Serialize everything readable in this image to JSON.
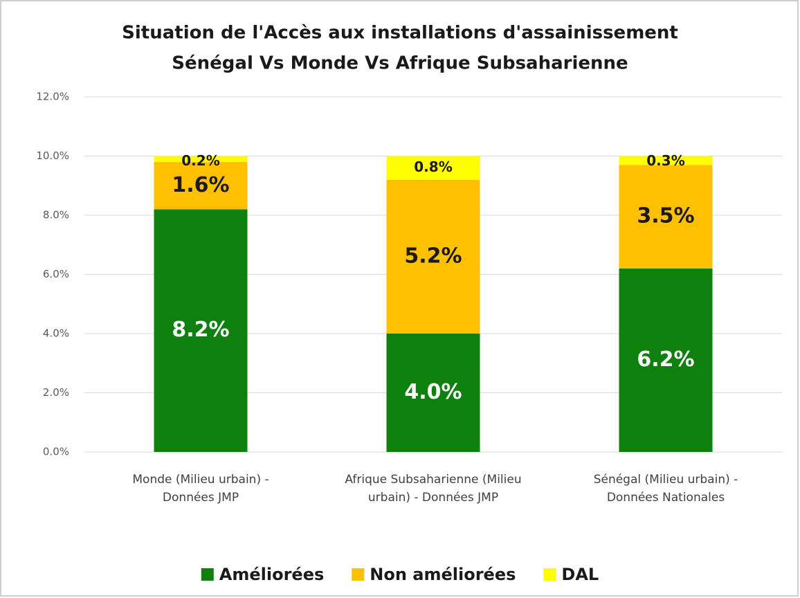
{
  "chart_data": {
    "type": "stacked_bar",
    "title": [
      "Situation de l'Accès aux installations d'assainissement",
      "Sénégal Vs Monde Vs Afrique Subsaharienne"
    ],
    "categories": [
      "Monde (Milieu urbain) - Données JMP",
      "Afrique Subsaharienne (Milieu urbain) - Données JMP",
      "Sénégal (Milieu urbain) - Données Nationales"
    ],
    "series": [
      {
        "name": "Améliorées",
        "color": "#0e800e",
        "values": [
          8.2,
          4.0,
          6.2
        ],
        "value_labels": [
          "8.2%",
          "4.0%",
          "6.2%"
        ]
      },
      {
        "name": "Non améliorées",
        "color": "#ffc000",
        "values": [
          1.6,
          5.2,
          3.5
        ],
        "value_labels": [
          "1.6%",
          "5.2%",
          "3.5%"
        ]
      },
      {
        "name": "DAL",
        "color": "#ffff00",
        "values": [
          0.2,
          0.8,
          0.3
        ],
        "value_labels": [
          "0.2%",
          "0.8%",
          "0.3%"
        ]
      }
    ],
    "ylim": [
      0,
      12
    ],
    "yticks": [
      {
        "value": 0,
        "label": "0.0%"
      },
      {
        "value": 2,
        "label": "2.0%"
      },
      {
        "value": 4,
        "label": "4.0%"
      },
      {
        "value": 6,
        "label": "6.0%"
      },
      {
        "value": 8,
        "label": "8.0%"
      },
      {
        "value": 10,
        "label": "10.0%"
      },
      {
        "value": 12,
        "label": "12.0%"
      }
    ],
    "grid": true,
    "legend": "bottom"
  }
}
